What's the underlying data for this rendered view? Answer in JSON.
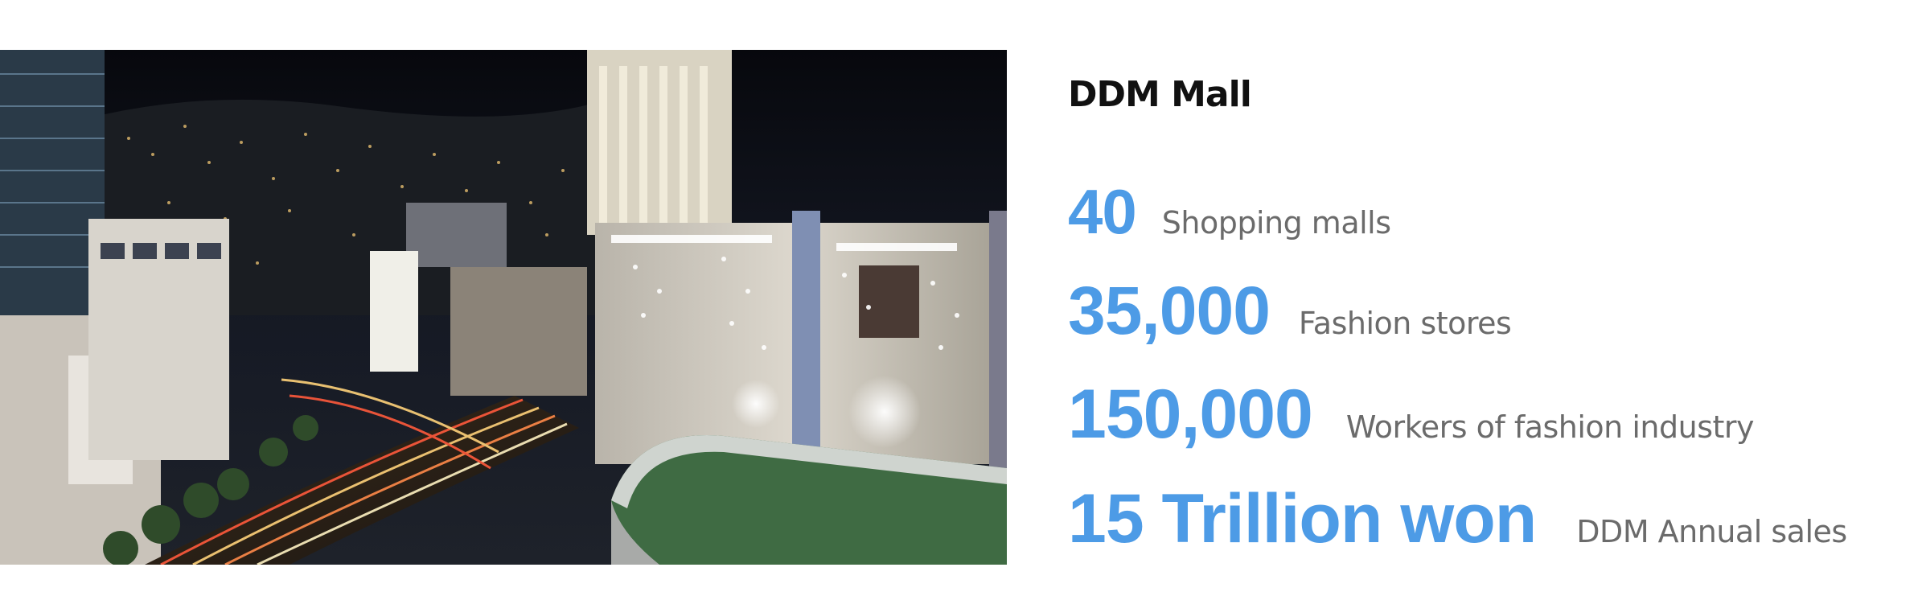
{
  "title": "DDM Mall",
  "stats": [
    {
      "value": "40",
      "label": "Shopping malls"
    },
    {
      "value": "35,000",
      "label": "Fashion stores"
    },
    {
      "value": "150,000",
      "label": "Workers of fashion industry"
    },
    {
      "value": "15 Trillion won",
      "label": "DDM Annual sales"
    }
  ],
  "photo": {
    "icon": "night-city-photo",
    "colors": {
      "sky": "#0b0d14",
      "lights": "#ffd27a",
      "mall": "#cfcac0",
      "roof": "#3f6b43"
    }
  }
}
